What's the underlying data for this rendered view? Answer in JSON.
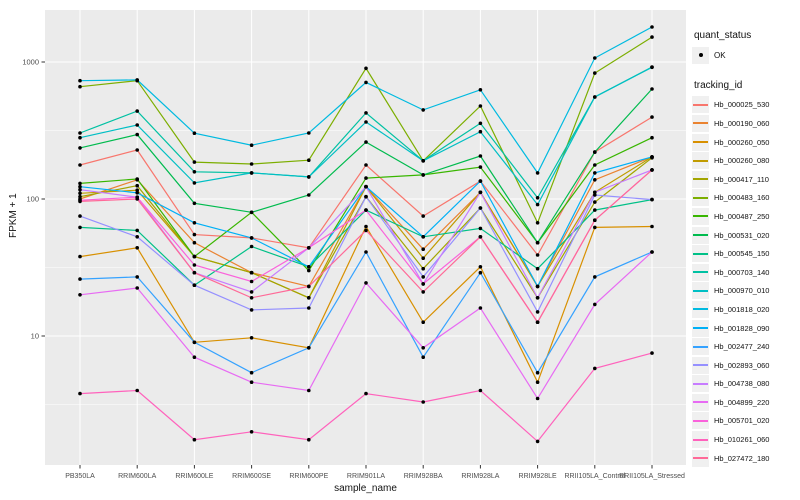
{
  "figure": {
    "background": "#FFFFFF",
    "panel_background": "#EBEBEB",
    "gridline_color": "#FFFFFF",
    "tick_color": "#333333",
    "tick_label_color": "#4D4D4D",
    "point_color": "#000000"
  },
  "legend": {
    "quant_status_title": "quant_status",
    "ok_label": "OK",
    "ok_marker": "point-icon",
    "tracking_id_title": "tracking_id"
  },
  "chart_data": {
    "type": "line",
    "title": "",
    "xlabel": "sample_name",
    "ylabel": "FPKM + 1",
    "y_scale": "log10",
    "grid": true,
    "legend_position": "right",
    "ylim": [
      1.15,
      2400
    ],
    "y_ticks": [
      10,
      100,
      1000
    ],
    "y_minor_ticks": [
      3.162,
      31.62,
      316.2
    ],
    "point_shape": "circle",
    "categories": [
      "PB350LA",
      "RRIM600LA",
      "RRIM600LE",
      "RRIM600SE",
      "RRIM600PE",
      "RRIM901LA",
      "RRIM928BA",
      "RRIM928LA",
      "RRIM928LE",
      "RRII105LA_Control",
      "RRII105LA_Stressed"
    ],
    "series": [
      {
        "name": "Hb_000025_530",
        "color": "#F8766D",
        "values": [
          177,
          228,
          55,
          52,
          44,
          177,
          75,
          135,
          39,
          220,
          396
        ]
      },
      {
        "name": "Hb_000190_060",
        "color": "#EA8331",
        "values": [
          100,
          138,
          48,
          29,
          23,
          123,
          43,
          112,
          23,
          138,
          203
        ]
      },
      {
        "name": "Hb_000260_050",
        "color": "#D89000",
        "values": [
          38,
          44,
          9,
          9.7,
          8.2,
          63,
          12.6,
          32,
          4.6,
          62,
          63
        ]
      },
      {
        "name": "Hb_000260_080",
        "color": "#C09B00",
        "values": [
          110,
          116,
          38,
          29,
          19,
          123,
          37,
          112,
          23,
          112,
          203
        ]
      },
      {
        "name": "Hb_000417_110",
        "color": "#A3A500",
        "values": [
          104,
          125,
          38,
          29,
          19,
          104,
          31,
          86,
          19,
          95,
          200
        ]
      },
      {
        "name": "Hb_000483_160",
        "color": "#7CAE00",
        "values": [
          660,
          730,
          186,
          180,
          192,
          900,
          190,
          477,
          67,
          830,
          1520
        ]
      },
      {
        "name": "Hb_000487_250",
        "color": "#39B600",
        "values": [
          130,
          140,
          38,
          80,
          30,
          142,
          150,
          171,
          48,
          177,
          280
        ]
      },
      {
        "name": "Hb_000531_020",
        "color": "#00BB4E",
        "values": [
          236,
          295,
          93,
          80,
          107,
          260,
          150,
          206,
          48,
          220,
          635
        ]
      },
      {
        "name": "Hb_000545_150",
        "color": "#00C087",
        "values": [
          62,
          59,
          23.5,
          45,
          32,
          83,
          53,
          61,
          31,
          83,
          99
        ]
      },
      {
        "name": "Hb_000703_140",
        "color": "#00C1A3",
        "values": [
          303,
          438,
          158,
          155,
          145,
          425,
          190,
          357,
          102,
          555,
          920
        ]
      },
      {
        "name": "Hb_000970_010",
        "color": "#00BFC4",
        "values": [
          280,
          347,
          131,
          155,
          145,
          365,
          190,
          310,
          91,
          555,
          915
        ]
      },
      {
        "name": "Hb_001818_020",
        "color": "#00BAE0",
        "values": [
          730,
          740,
          302,
          247,
          303,
          710,
          447,
          627,
          155,
          1070,
          1800
        ]
      },
      {
        "name": "Hb_001828_090",
        "color": "#00B0F6",
        "values": [
          123,
          111,
          67,
          52,
          32,
          123,
          53,
          135,
          23,
          155,
          203
        ]
      },
      {
        "name": "Hb_002477_240",
        "color": "#35A2FF",
        "values": [
          26,
          27,
          9,
          5.4,
          8.2,
          41,
          7,
          29,
          5.4,
          27,
          41
        ]
      },
      {
        "name": "Hb_002893_060",
        "color": "#9590FF",
        "values": [
          75,
          53,
          23.5,
          15.5,
          16,
          104,
          27,
          86,
          15,
          107,
          99
        ]
      },
      {
        "name": "Hb_004738_080",
        "color": "#C77CFF",
        "values": [
          117,
          103,
          29,
          21,
          44,
          123,
          24,
          112,
          19,
          112,
          163
        ]
      },
      {
        "name": "Hb_004899_220",
        "color": "#E76BF3",
        "values": [
          20,
          22.4,
          7,
          4.6,
          4,
          24.4,
          8.2,
          16,
          3.5,
          17,
          41
        ]
      },
      {
        "name": "Hb_005701_020",
        "color": "#FA62DB",
        "values": [
          98,
          103,
          33,
          25,
          44,
          83,
          24,
          53,
          12.6,
          70,
          163
        ]
      },
      {
        "name": "Hb_010261_060",
        "color": "#FF62BC",
        "values": [
          3.8,
          4,
          1.75,
          2,
          1.75,
          3.8,
          3.3,
          4,
          1.7,
          5.8,
          7.5
        ]
      },
      {
        "name": "Hb_027472_180",
        "color": "#FF6A98",
        "values": [
          96,
          100,
          29,
          19,
          23,
          59,
          21,
          53,
          12.6,
          70,
          163
        ]
      }
    ]
  }
}
